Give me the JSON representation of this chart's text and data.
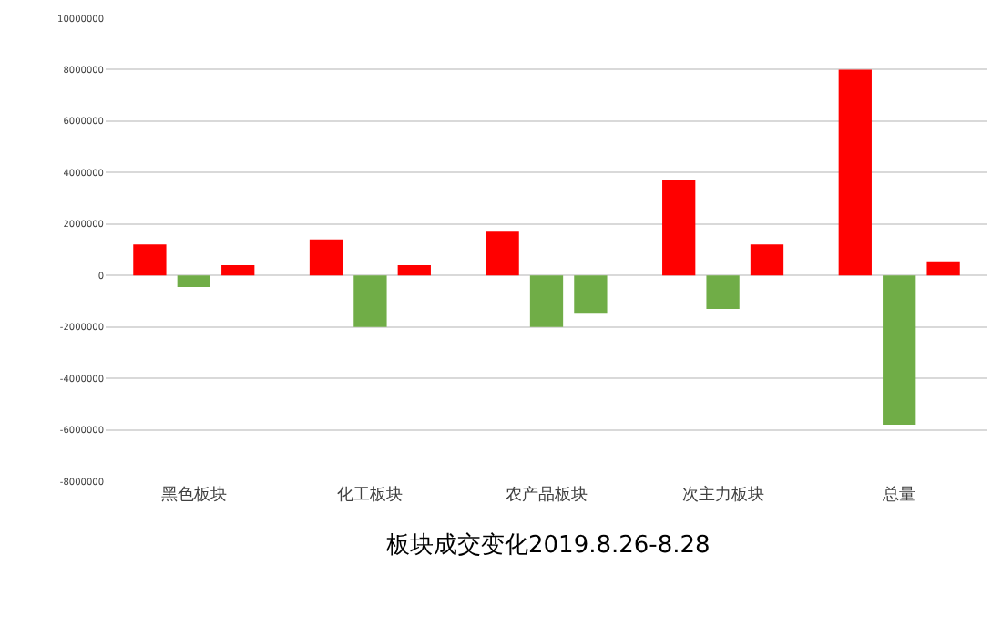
{
  "chart_data": {
    "type": "bar",
    "title": "板块成交变化2019.8.26-8.28",
    "categories": [
      "黑色板块",
      "化工板块",
      "农产品板块",
      "次主力板块",
      "总量"
    ],
    "series": [
      {
        "color": "#ff0000",
        "values": [
          1200000,
          1400000,
          1700000,
          3700000,
          8000000
        ]
      },
      {
        "color": "#70ad47",
        "values": [
          -450000,
          -2000000,
          -2000000,
          -1300000,
          -5800000
        ]
      },
      {
        "colors": [
          "#ff0000",
          "#ff0000",
          "#70ad47",
          "#ff0000",
          "#ff0000"
        ],
        "values": [
          400000,
          400000,
          -1450000,
          1200000,
          550000
        ]
      }
    ],
    "ylim": [
      -8000000,
      10000000
    ],
    "yticks": [
      -8000000,
      -6000000,
      -4000000,
      -2000000,
      0,
      2000000,
      4000000,
      6000000,
      8000000,
      10000000
    ],
    "grid": "y"
  }
}
